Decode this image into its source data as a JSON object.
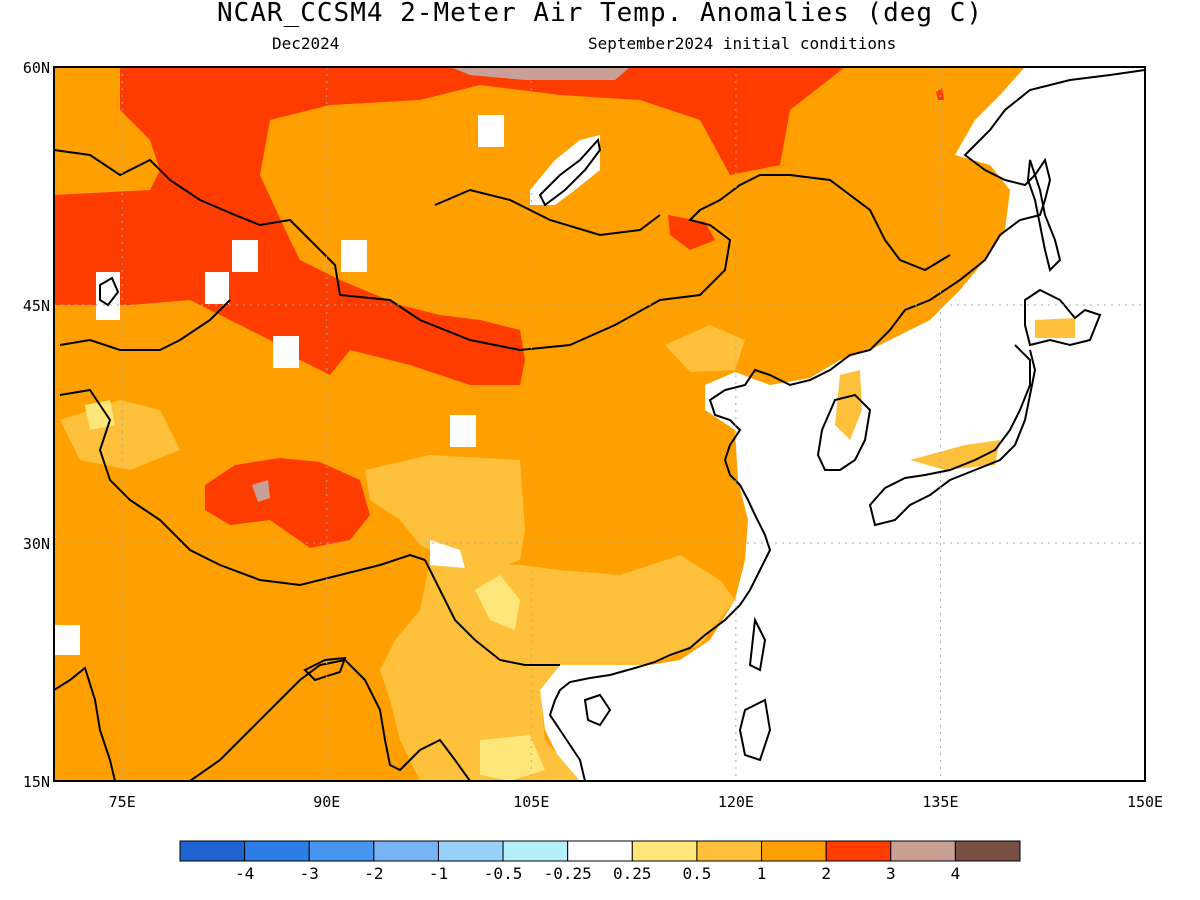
{
  "header": {
    "title": "NCAR_CCSM4 2-Meter Air Temp. Anomalies (deg C)",
    "valid_month": "Dec2024",
    "init_conditions": "September2024 initial conditions"
  },
  "map": {
    "lon_range": [
      70,
      150
    ],
    "lat_range": [
      15,
      60
    ],
    "lat_ticks": [
      {
        "value": 60,
        "label": "60N"
      },
      {
        "value": 45,
        "label": "45N"
      },
      {
        "value": 30,
        "label": "30N"
      },
      {
        "value": 15,
        "label": "15N"
      }
    ],
    "lon_ticks": [
      {
        "value": 75,
        "label": "75E"
      },
      {
        "value": 90,
        "label": "90E"
      },
      {
        "value": 105,
        "label": "105E"
      },
      {
        "value": 120,
        "label": "120E"
      },
      {
        "value": 135,
        "label": "135E"
      },
      {
        "value": 150,
        "label": "150E"
      }
    ],
    "grid": "dotted"
  },
  "colorbar": {
    "bins": [
      {
        "color": "#1e64d2"
      },
      {
        "color": "#2d7de6"
      },
      {
        "color": "#4696f0"
      },
      {
        "color": "#78b4f5"
      },
      {
        "color": "#96d2fa"
      },
      {
        "color": "#b4f0fa"
      },
      {
        "color": "#ffffff"
      },
      {
        "color": "#ffe678"
      },
      {
        "color": "#ffc03c"
      },
      {
        "color": "#ffa000"
      },
      {
        "color": "#ff3c00"
      },
      {
        "color": "#c8a096"
      },
      {
        "color": "#785046"
      }
    ],
    "labels": [
      "-4",
      "-3",
      "-2",
      "-1",
      "-0.5",
      "-0.25",
      "0.25",
      "0.5",
      "1",
      "2",
      "3",
      "4"
    ]
  }
}
